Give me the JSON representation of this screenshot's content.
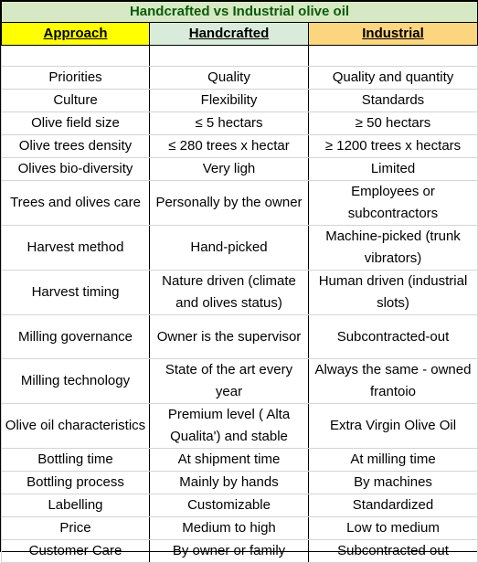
{
  "title": "Handcrafted vs Industrial olive oil",
  "headers": {
    "approach": "Approach",
    "handcrafted": "Handcrafted",
    "industrial": "Industrial"
  },
  "colors": {
    "title_bg": "#d6e9c4",
    "title_text": "#0b5a0b",
    "approach_bg": "#ffff00",
    "handcrafted_bg": "#d9ecdb",
    "industrial_bg": "#fcd57f"
  },
  "rows": [
    {
      "approach": "Priorities",
      "handcrafted": "Quality",
      "industrial": "Quality and quantity"
    },
    {
      "approach": "Culture",
      "handcrafted": "Flexibility",
      "industrial": "Standards"
    },
    {
      "approach": "Olive field size",
      "handcrafted": "≤ 5 hectars",
      "industrial": "≥ 50 hectars"
    },
    {
      "approach": "Olive trees density",
      "handcrafted": "≤ 280 trees x hectar",
      "industrial": "≥ 1200 trees x hectars"
    },
    {
      "approach": "Olives bio-diversity",
      "handcrafted": "Very ligh",
      "industrial": "Limited"
    },
    {
      "approach": "Trees and olives care",
      "handcrafted": "Personally by the owner",
      "industrial": "Employees or subcontractors"
    },
    {
      "approach": "Harvest method",
      "handcrafted": "Hand-picked",
      "industrial": "Machine-picked (trunk vibrators)"
    },
    {
      "approach": "Harvest timing",
      "handcrafted": "Nature driven (climate and olives status)",
      "industrial": "Human driven (industrial slots)"
    },
    {
      "approach": "Milling governance",
      "handcrafted": "Owner is the supervisor",
      "industrial": "Subcontracted-out"
    },
    {
      "approach": "Milling technology",
      "handcrafted": "State of the art every year",
      "industrial": "Always the same - owned frantoio"
    },
    {
      "approach": "Olive oil characteristics",
      "handcrafted": "Premium level ( Alta Qualita') and stable",
      "industrial": "Extra Virgin Olive Oil"
    },
    {
      "approach": "Bottling time",
      "handcrafted": "At shipment time",
      "industrial": "At milling time"
    },
    {
      "approach": "Bottling process",
      "handcrafted": "Mainly by hands",
      "industrial": "By machines"
    },
    {
      "approach": "Labelling",
      "handcrafted": "Customizable",
      "industrial": "Standardized"
    },
    {
      "approach": "Price",
      "handcrafted": "Medium to high",
      "industrial": "Low to medium"
    },
    {
      "approach": "Customer Care",
      "handcrafted": "By owner or family",
      "industrial": "Subcontracted out"
    }
  ]
}
